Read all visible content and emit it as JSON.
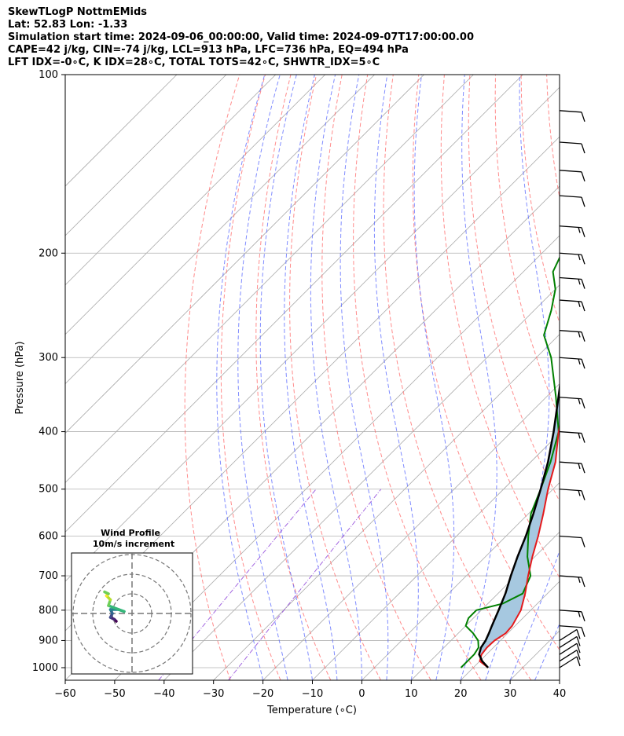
{
  "header": {
    "line1": "SkewTLogP NottmEMids",
    "line2": "Lat: 52.83   Lon: -1.33",
    "line3": "Simulation start time: 2024-09-06_00:00:00, Valid time: 2024-09-07T17:00:00.00",
    "line4": "CAPE=42 j/kg, CIN=-74 j/kg, LCL=913 hPa, LFC=736 hPa, EQ=494 hPa",
    "line5": "LFT IDX=-0∘C, K IDX=28∘C, TOTAL TOTS=42∘C, SHWTR_IDX=5∘C"
  },
  "chart_data": {
    "type": "skew-t",
    "xlabel": "Temperature (∘C)",
    "ylabel": "Pressure (hPa)",
    "xlim": [
      -60,
      40
    ],
    "ylim": [
      1050,
      100
    ],
    "x_ticks": [
      -60,
      -50,
      -40,
      -30,
      -20,
      -10,
      0,
      10,
      20,
      30,
      40
    ],
    "y_ticks": [
      100,
      200,
      300,
      400,
      500,
      600,
      700,
      800,
      900,
      1000
    ],
    "grid": true,
    "colors": {
      "temperature": "#e41a1c",
      "dewpoint": "#008000",
      "parcel": "#000000",
      "cape_fill": "#a6c8e0",
      "dry_adiabat": "#ff6666",
      "moist_adiabat": "#5566ff",
      "mixing_ratio": "#9955dd",
      "isotherm": "#aaaaaa"
    },
    "temperature": [
      [
        1000,
        23
      ],
      [
        975,
        20
      ],
      [
        950,
        19
      ],
      [
        925,
        18.7
      ],
      [
        900,
        18.8
      ],
      [
        875,
        19.6
      ],
      [
        850,
        19.4
      ],
      [
        800,
        18
      ],
      [
        750,
        15.5
      ],
      [
        700,
        12.5
      ],
      [
        650,
        9.5
      ],
      [
        600,
        6.5
      ],
      [
        550,
        3
      ],
      [
        500,
        -1
      ],
      [
        450,
        -5
      ],
      [
        400,
        -10.5
      ],
      [
        350,
        -16
      ],
      [
        300,
        -22
      ],
      [
        275,
        -26.5
      ],
      [
        250,
        -31
      ],
      [
        230,
        -34.5
      ],
      [
        215,
        -35
      ],
      [
        200,
        -36
      ],
      [
        190,
        -40
      ],
      [
        180,
        -41
      ],
      [
        170,
        -43
      ],
      [
        160,
        -44.5
      ],
      [
        150,
        -46
      ],
      [
        140,
        -47
      ],
      [
        130,
        -50
      ],
      [
        120,
        -53
      ],
      [
        110,
        -57
      ],
      [
        100,
        -59
      ]
    ],
    "dewpoint": [
      [
        1000,
        17.5
      ],
      [
        975,
        17.5
      ],
      [
        950,
        17.5
      ],
      [
        925,
        17
      ],
      [
        900,
        15.5
      ],
      [
        875,
        13
      ],
      [
        850,
        10
      ],
      [
        825,
        9
      ],
      [
        800,
        9
      ],
      [
        780,
        13
      ],
      [
        750,
        15
      ],
      [
        700,
        13
      ],
      [
        650,
        8.5
      ],
      [
        600,
        4.5
      ],
      [
        550,
        0.5
      ],
      [
        500,
        -2.5
      ],
      [
        450,
        -6
      ],
      [
        400,
        -10.5
      ],
      [
        350,
        -18
      ],
      [
        300,
        -27
      ],
      [
        275,
        -33
      ],
      [
        250,
        -36.5
      ],
      [
        230,
        -40
      ],
      [
        215,
        -44
      ],
      [
        200,
        -46
      ],
      [
        190,
        -49
      ],
      [
        180,
        -50
      ],
      [
        170,
        -53
      ],
      [
        160,
        -57
      ],
      [
        150,
        -60
      ],
      [
        140,
        -63
      ],
      [
        120,
        -66
      ],
      [
        100,
        -76
      ]
    ],
    "parcel": [
      [
        1000,
        23
      ],
      [
        975,
        20.5
      ],
      [
        950,
        18.5
      ],
      [
        925,
        17.5
      ],
      [
        900,
        17
      ],
      [
        875,
        16.2
      ],
      [
        850,
        15.3
      ],
      [
        800,
        13.5
      ],
      [
        750,
        11.5
      ],
      [
        700,
        9
      ],
      [
        650,
        6.5
      ],
      [
        600,
        4
      ],
      [
        550,
        1
      ],
      [
        500,
        -2.5
      ],
      [
        450,
        -6.5
      ],
      [
        400,
        -11.5
      ],
      [
        350,
        -17.5
      ],
      [
        300,
        -24.5
      ],
      [
        250,
        -33.5
      ],
      [
        200,
        -44.5
      ],
      [
        150,
        -58
      ],
      [
        100,
        -78
      ]
    ],
    "wind_barbs": [
      [
        1000,
        "SW",
        10
      ],
      [
        975,
        "SW",
        10
      ],
      [
        950,
        "SW",
        10
      ],
      [
        925,
        "SW",
        10
      ],
      [
        900,
        "SW",
        10
      ],
      [
        850,
        "W",
        10
      ],
      [
        800,
        "W",
        15
      ],
      [
        700,
        "W",
        15
      ],
      [
        600,
        "W",
        10
      ],
      [
        500,
        "W",
        15
      ],
      [
        450,
        "W",
        15
      ],
      [
        400,
        "W",
        15
      ],
      [
        350,
        "W",
        15
      ],
      [
        300,
        "W",
        15
      ],
      [
        270,
        "W",
        15
      ],
      [
        240,
        "W",
        15
      ],
      [
        220,
        "W",
        15
      ],
      [
        200,
        "W",
        15
      ],
      [
        180,
        "W",
        15
      ],
      [
        160,
        "W",
        10
      ],
      [
        145,
        "W",
        10
      ],
      [
        130,
        "W",
        10
      ],
      [
        115,
        "W",
        10
      ]
    ],
    "inset": {
      "title_line1": "Wind Profile",
      "title_line2": "10m/s increment",
      "hodograph": [
        [
          0,
          0
        ],
        [
          -1,
          1
        ],
        [
          -3,
          2
        ],
        [
          -2,
          4
        ],
        [
          -3,
          6
        ],
        [
          1,
          6
        ],
        [
          4,
          5
        ],
        [
          -4,
          8
        ],
        [
          -3,
          11
        ],
        [
          -5,
          13
        ],
        [
          -4,
          14
        ],
        [
          -6,
          15
        ]
      ]
    }
  }
}
